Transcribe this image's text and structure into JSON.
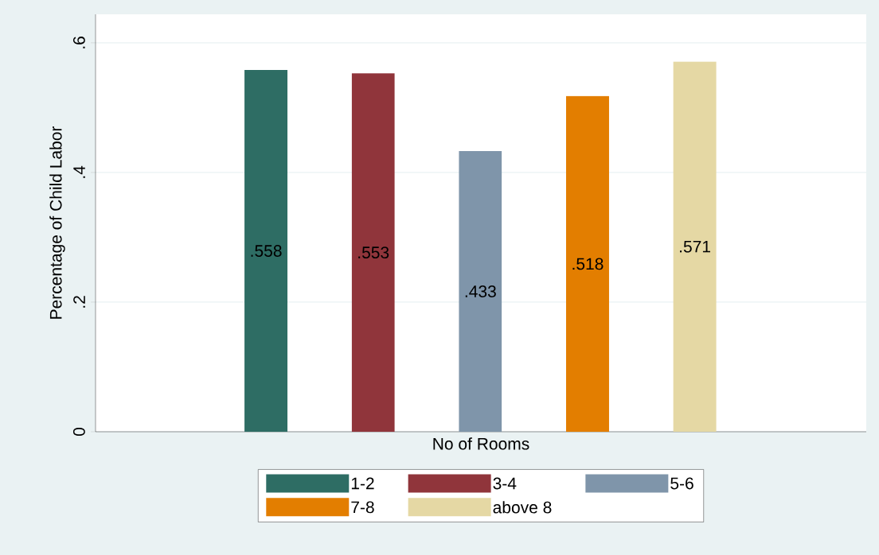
{
  "chart_data": {
    "type": "bar",
    "xlabel": "No of Rooms",
    "ylabel": "Percentage  of  Child  Labor",
    "categories": [
      null
    ],
    "series": [
      {
        "name": "1-2",
        "color": "#2e6d64",
        "values": [
          0.558
        ],
        "value_labels": [
          ".558"
        ]
      },
      {
        "name": "3-4",
        "color": "#90353b",
        "values": [
          0.553
        ],
        "value_labels": [
          ".553"
        ]
      },
      {
        "name": "5-6",
        "color": "#7f95aa",
        "values": [
          0.433
        ],
        "value_labels": [
          ".433"
        ]
      },
      {
        "name": "7-8",
        "color": "#e37e00",
        "values": [
          0.518
        ],
        "value_labels": [
          ".518"
        ]
      },
      {
        "name": "above 8",
        "color": "#e5d8a4",
        "values": [
          0.571
        ],
        "value_labels": [
          ".571"
        ]
      }
    ],
    "ylim": [
      0,
      0.644
    ],
    "yticks": [
      {
        "value": 0,
        "label": "0"
      },
      {
        "value": 0.2,
        "label": ".2"
      },
      {
        "value": 0.4,
        "label": ".4"
      },
      {
        "value": 0.6,
        "label": ".6"
      }
    ],
    "grid": "y",
    "legend": "bottom"
  }
}
